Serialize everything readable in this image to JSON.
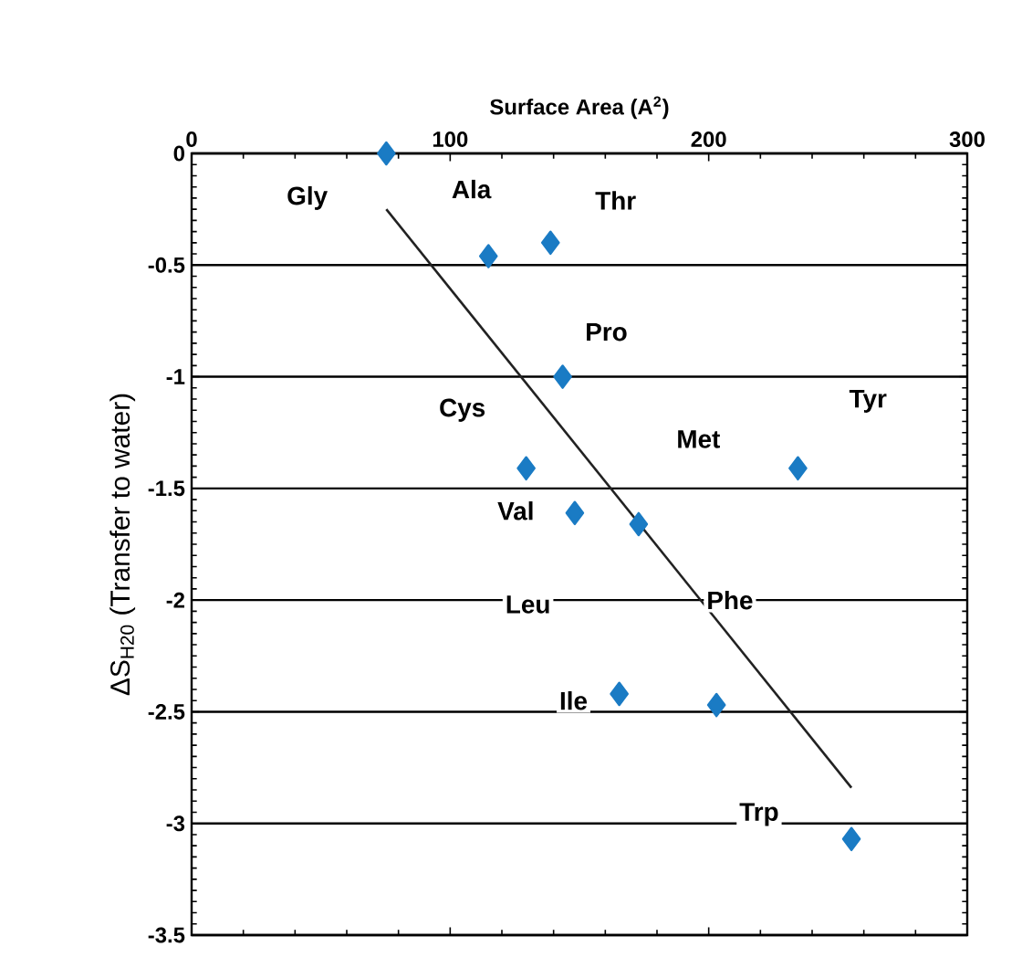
{
  "chart_data": {
    "type": "scatter",
    "xlabel": "Surface Area (A$^{2}$)",
    "ylabel": "ΔS$_{H20}$ (Transfer to water)",
    "xlim": [
      0,
      300
    ],
    "xticks": [
      0,
      100,
      200,
      300
    ],
    "ylim": [
      -3.5,
      0
    ],
    "yticks": [
      -3.5,
      -3,
      -2.5,
      -2,
      -1.5,
      -1,
      -0.5,
      0
    ],
    "grid": "y",
    "marker": "diamond",
    "series": [
      {
        "color": "#1a7bc4",
        "x": [
          75.3,
          114.8,
          138.8,
          143.5,
          129.4,
          148.2,
          172.9,
          234.5,
          165.4,
          203,
          255.2
        ],
        "values": [
          0,
          -0.46,
          -0.4,
          -1.0,
          -1.41,
          -1.61,
          -1.66,
          -1.41,
          -2.42,
          -2.47,
          -3.07
        ]
      },
      {
        "type": "line",
        "color": "#222222",
        "marker": "none",
        "x": [
          75.3,
          255.2
        ],
        "values": [
          -0.25,
          -2.84
        ]
      }
    ],
    "annotations": [
      {
        "text": "Gly",
        "x": 44.7,
        "y": -0.2
      },
      {
        "text": "Ala",
        "x": 108.2,
        "y": -0.16
      },
      {
        "text": "Thr",
        "x": 164,
        "y": -0.21
      },
      {
        "text": "Pro",
        "x": 160.4,
        "y": -0.8
      },
      {
        "text": "Cys",
        "x": 104.7,
        "y": -1.15
      },
      {
        "text": "Tyr",
        "x": 261.6,
        "y": -1.11
      },
      {
        "text": "Met",
        "x": 196,
        "y": -1.28
      },
      {
        "text": "Val",
        "x": 125.4,
        "y": -1.6
      },
      {
        "text": "Leu",
        "x": 130.1,
        "y": -2.02
      },
      {
        "text": "Phe",
        "x": 208.2,
        "y": -2.0
      },
      {
        "text": "Ile",
        "x": 147.7,
        "y": -2.45
      },
      {
        "text": "Trp",
        "x": 219.5,
        "y": -2.96
      }
    ]
  }
}
